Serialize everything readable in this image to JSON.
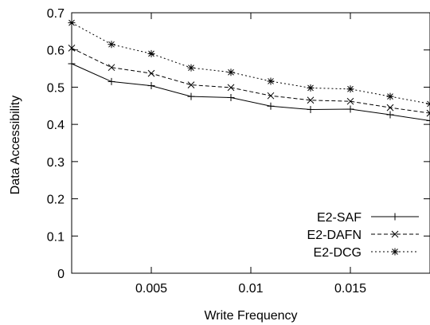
{
  "chart_data": {
    "type": "line",
    "title": "",
    "xlabel": "Write Frequency",
    "ylabel": "Data Accessibility",
    "xlim": [
      0.001,
      0.019
    ],
    "ylim": [
      0,
      0.7
    ],
    "xticks": [
      0.005,
      0.01,
      0.015
    ],
    "xtick_labels": [
      "0.005",
      "0.01",
      "0.015"
    ],
    "yticks": [
      0,
      0.1,
      0.2,
      0.3,
      0.4,
      0.5,
      0.6,
      0.7
    ],
    "ytick_labels": [
      "0",
      "0.1",
      "0.2",
      "0.3",
      "0.4",
      "0.5",
      "0.6",
      "0.7"
    ],
    "grid": false,
    "legend_position": "bottom-right",
    "x": [
      0.001,
      0.003,
      0.005,
      0.007,
      0.009,
      0.011,
      0.013,
      0.015,
      0.017,
      0.019
    ],
    "series": [
      {
        "name": "E2-SAF",
        "marker": "plus",
        "line_style": "solid",
        "values": [
          0.563,
          0.515,
          0.504,
          0.475,
          0.472,
          0.449,
          0.44,
          0.441,
          0.426,
          0.41
        ]
      },
      {
        "name": "E2-DAFN",
        "marker": "cross",
        "line_style": "dashed",
        "values": [
          0.605,
          0.553,
          0.537,
          0.506,
          0.499,
          0.477,
          0.465,
          0.462,
          0.445,
          0.43
        ]
      },
      {
        "name": "E2-DCG",
        "marker": "asterisk",
        "line_style": "dotted",
        "values": [
          0.673,
          0.615,
          0.59,
          0.552,
          0.54,
          0.516,
          0.498,
          0.495,
          0.475,
          0.455
        ]
      }
    ]
  }
}
